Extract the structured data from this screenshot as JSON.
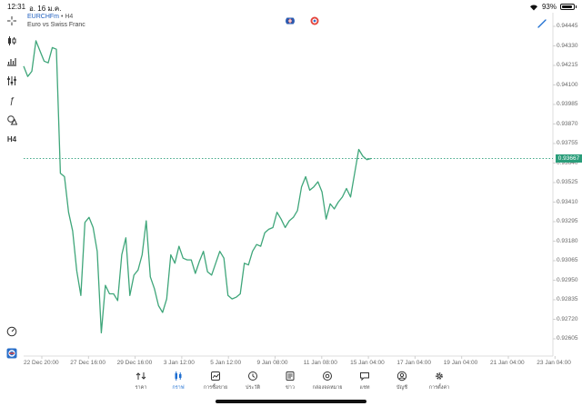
{
  "status_bar": {
    "time": "12:31",
    "date": "อ. 16 ม.ค.",
    "battery": "93%"
  },
  "symbol": {
    "code": "EURCHFm",
    "separator": "•",
    "timeframe": "H4",
    "description": "Euro vs Swiss Franc"
  },
  "toolbar": [
    {
      "name": "crosshair-icon",
      "glyph": ""
    },
    {
      "name": "candles-icon",
      "glyph": ""
    },
    {
      "name": "bars-icon",
      "glyph": ""
    },
    {
      "name": "indicators-icon",
      "glyph": ""
    },
    {
      "name": "function-icon",
      "glyph": "ƒ"
    },
    {
      "name": "shapes-icon",
      "glyph": ""
    },
    {
      "name": "timeframe-label",
      "glyph": "H4"
    }
  ],
  "colors": {
    "line": "#3fa67a",
    "accent": "#1f6fd1",
    "price_tag": "#2a9d7a",
    "grid": "#ededed"
  },
  "current_price": "0.93667",
  "chart_data": {
    "type": "line",
    "title": "",
    "y_ticks": [
      "0.94445",
      "0.94330",
      "0.94215",
      "0.94100",
      "0.93985",
      "0.93870",
      "0.93755",
      "0.93640",
      "0.93525",
      "0.93410",
      "0.93295",
      "0.93180",
      "0.93065",
      "0.92950",
      "0.92835",
      "0.92720",
      "0.92605"
    ],
    "x_ticks": [
      "22 Dec 20:00",
      "27 Dec 16:00",
      "29 Dec 16:00",
      "3 Jan 12:00",
      "5 Jan 12:00",
      "9 Jan 08:00",
      "11 Jan 08:00",
      "15 Jan 04:00",
      "17 Jan 04:00",
      "19 Jan 04:00",
      "21 Jan 04:00",
      "23 Jan 04:00"
    ],
    "ylim": [
      0.9256,
      0.945
    ],
    "current_line": 0.93667,
    "series": [
      {
        "values": [
          0.9421,
          0.9415,
          0.9418,
          0.9436,
          0.943,
          0.9424,
          0.9423,
          0.9432,
          0.9431,
          0.9358,
          0.9356,
          0.9335,
          0.9324,
          0.93005,
          0.9286,
          0.9329,
          0.9332,
          0.9326,
          0.9312,
          0.9264,
          0.9292,
          0.9287,
          0.9287,
          0.9283,
          0.931,
          0.932,
          0.9286,
          0.9298,
          0.9301,
          0.931,
          0.933,
          0.9297,
          0.929,
          0.928,
          0.9276,
          0.9284,
          0.931,
          0.9305,
          0.9315,
          0.9308,
          0.9307,
          0.9307,
          0.9299,
          0.9306,
          0.9312,
          0.93,
          0.9298,
          0.9305,
          0.9312,
          0.9308,
          0.9286,
          0.9284,
          0.9285,
          0.9287,
          0.9305,
          0.9304,
          0.9312,
          0.9316,
          0.9315,
          0.9323,
          0.9325,
          0.9326,
          0.9335,
          0.9331,
          0.9326,
          0.933,
          0.9332,
          0.9336,
          0.935,
          0.9356,
          0.9348,
          0.935,
          0.9353,
          0.9347,
          0.9331,
          0.934,
          0.9337,
          0.9341,
          0.9344,
          0.9349,
          0.9344,
          0.9358,
          0.9372,
          0.9368,
          0.9366,
          0.93667
        ]
      }
    ]
  },
  "nav": [
    {
      "name": "nav-quotes",
      "icon": "quotes-icon",
      "label": "ราคา"
    },
    {
      "name": "nav-charts",
      "icon": "chart-icon",
      "label": "กราฟ",
      "active": true
    },
    {
      "name": "nav-trade",
      "icon": "trade-icon",
      "label": "การซื้อขาย"
    },
    {
      "name": "nav-history",
      "icon": "history-icon",
      "label": "ประวัติ"
    },
    {
      "name": "nav-news",
      "icon": "news-icon",
      "label": "ข่าว"
    },
    {
      "name": "nav-mailbox",
      "icon": "mail-icon",
      "label": "กล่องจดหมาย"
    },
    {
      "name": "nav-chat",
      "icon": "chat-icon",
      "label": "แชท"
    },
    {
      "name": "nav-accounts",
      "icon": "account-icon",
      "label": "บัญชี"
    },
    {
      "name": "nav-settings",
      "icon": "gear-icon",
      "label": "การตั้งค่า"
    }
  ]
}
